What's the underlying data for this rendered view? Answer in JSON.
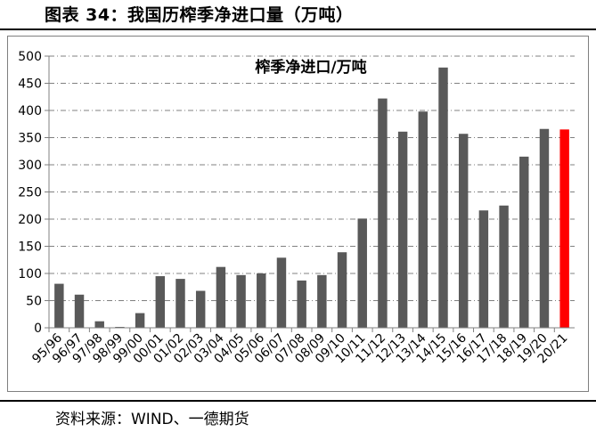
{
  "figure_title": "图表 34：我国历榨季净进口量（万吨）",
  "source_note": "资料来源：WIND、一德期货",
  "chart_data": {
    "type": "bar",
    "title": "榨季净进口/万吨",
    "xlabel": "",
    "ylabel": "",
    "ylim": [
      0,
      500
    ],
    "yticks": [
      0,
      50,
      100,
      150,
      200,
      250,
      300,
      350,
      400,
      450,
      500
    ],
    "grid": true,
    "categories": [
      "95/96",
      "96/97",
      "97/98",
      "98/99",
      "99/00",
      "00/01",
      "01/02",
      "02/03",
      "03/04",
      "04/05",
      "05/06",
      "06/07",
      "07/08",
      "08/09",
      "09/10",
      "10/11",
      "11/12",
      "12/13",
      "13/14",
      "14/15",
      "15/16",
      "16/17",
      "17/18",
      "18/19",
      "19/20",
      "20/21"
    ],
    "values": [
      81,
      61,
      12,
      1,
      27,
      95,
      90,
      68,
      112,
      97,
      100,
      129,
      87,
      97,
      139,
      201,
      422,
      361,
      398,
      479,
      357,
      216,
      225,
      315,
      366,
      365
    ],
    "colors": {
      "bar": "#595959",
      "highlight": "#ff0000",
      "grid": "#808080"
    },
    "highlight_index": 25
  }
}
